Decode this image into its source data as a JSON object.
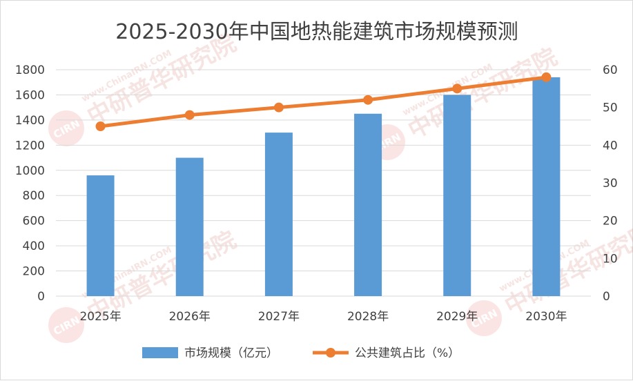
{
  "chart_data": {
    "type": "bar",
    "title": "2025-2030年中国地热能建筑市场规模预测",
    "categories": [
      "2025年",
      "2026年",
      "2027年",
      "2028年",
      "2029年",
      "2030年"
    ],
    "series": [
      {
        "name": "市场规模（亿元）",
        "type": "bar",
        "axis": "left",
        "values": [
          960,
          1100,
          1300,
          1450,
          1600,
          1740
        ],
        "color": "#5b9bd5"
      },
      {
        "name": "公共建筑占比（%）",
        "type": "line",
        "axis": "right",
        "values": [
          45,
          48,
          50,
          52,
          55,
          58
        ],
        "color": "#ed7d31"
      }
    ],
    "y_left": {
      "min": 0,
      "max": 1800,
      "step": 200,
      "ticks": [
        "0",
        "200",
        "400",
        "600",
        "800",
        "1000",
        "1200",
        "1400",
        "1600",
        "1800"
      ]
    },
    "y_right": {
      "min": 0,
      "max": 60,
      "step": 10,
      "ticks": [
        "0",
        "10",
        "20",
        "30",
        "40",
        "50",
        "60"
      ]
    },
    "grid": true,
    "legend": "bottom"
  },
  "watermark": {
    "logo": "CIRN",
    "url": "www.ChinaIRN.COM",
    "name": "中研普华研究院"
  }
}
